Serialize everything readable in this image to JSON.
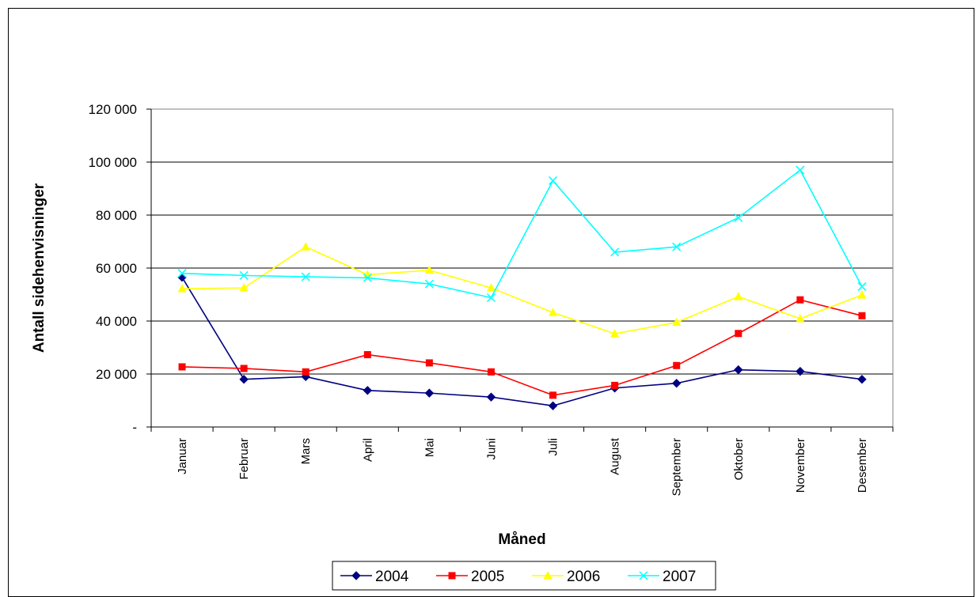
{
  "chart_data": {
    "type": "line",
    "title": "",
    "xlabel": "Måned",
    "ylabel": "Antall sidehenvisninger",
    "categories": [
      "Januar",
      "Februar",
      "Mars",
      "April",
      "Mai",
      "Juni",
      "Juli",
      "August",
      "September",
      "Oktober",
      "November",
      "Desember"
    ],
    "ylim": [
      0,
      120000
    ],
    "yticks": [
      0,
      20000,
      40000,
      60000,
      80000,
      100000,
      120000
    ],
    "ytick_labels": [
      "-",
      "20 000",
      "40 000",
      "60 000",
      "80 000",
      "100 000",
      "120 000"
    ],
    "grid": "horizontal",
    "legend_position": "bottom",
    "series": [
      {
        "name": "2004",
        "color": "#000080",
        "marker": "diamond",
        "values": [
          56500,
          18000,
          19000,
          13800,
          12800,
          11300,
          8000,
          14700,
          16500,
          21600,
          21000,
          18000
        ]
      },
      {
        "name": "2005",
        "color": "#FF0000",
        "marker": "square",
        "values": [
          22700,
          22100,
          20800,
          27300,
          24200,
          20800,
          12000,
          15700,
          23200,
          35300,
          48000,
          42000
        ]
      },
      {
        "name": "2006",
        "color": "#FFFF00",
        "marker": "triangle",
        "values": [
          52200,
          52500,
          68000,
          57500,
          59200,
          52500,
          43200,
          35200,
          39500,
          49200,
          40900,
          49800
        ]
      },
      {
        "name": "2007",
        "color": "#00FFFF",
        "marker": "x",
        "values": [
          58000,
          57200,
          56700,
          56300,
          54000,
          48800,
          93000,
          66000,
          68000,
          79000,
          97000,
          53000
        ]
      }
    ]
  }
}
